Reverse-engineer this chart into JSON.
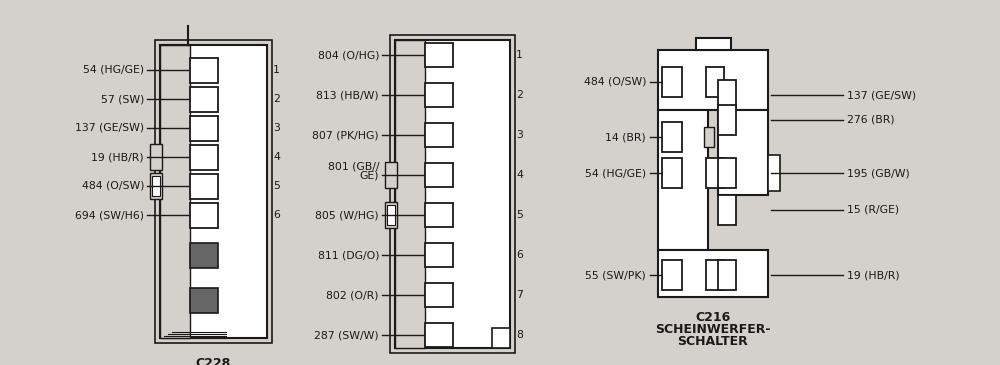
{
  "bg_color": "#d4d0cb",
  "line_color": "#1a1a1a",
  "text_color": "#1a1a1a",
  "font_size": 7.8,
  "title_font_size": 9.0,
  "c228_pins": [
    "54 (HG/GE)",
    "57 (SW)",
    "137 (GE/SW)",
    "19 (HB/R)",
    "484 (O/SW)",
    "694 (SW/H6)"
  ],
  "c228_nums": [
    "1",
    "2",
    "3",
    "4",
    "5",
    "6"
  ],
  "c229_pins": [
    "804 (O/HG)",
    "813 (HB/W)",
    "807 (PK/HG)",
    "801 (GB/\nGE)",
    "805 (W/HG)",
    "811 (DG/O)",
    "802 (O/R)",
    "287 (SW/W)"
  ],
  "c229_nums": [
    "1",
    "2",
    "3",
    "4",
    "5",
    "6",
    "7",
    "8"
  ],
  "c216_left_pins": [
    "484 (O/SW)",
    "14 (BR)",
    "54 (HG/GE)",
    "55 (SW/PK)"
  ],
  "c216_right_pins": [
    "137 (GE/SW)",
    "276 (BR)",
    "195 (GB/W)",
    "15 (R/GE)",
    "19 (HB/R)"
  ]
}
